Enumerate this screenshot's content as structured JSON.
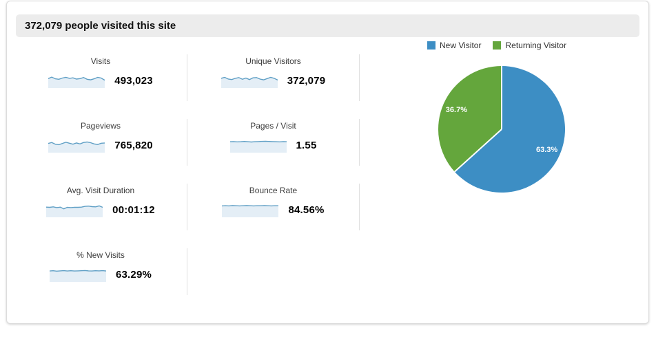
{
  "header": {
    "title": "372,079 people visited this site"
  },
  "metrics": [
    {
      "id": "visits",
      "label": "Visits",
      "value": "493,023",
      "row": 0,
      "col": 0,
      "spark": [
        0.68,
        0.8,
        0.66,
        0.62,
        0.72,
        0.78,
        0.7,
        0.74,
        0.64,
        0.68,
        0.76,
        0.62,
        0.58,
        0.66,
        0.78,
        0.72,
        0.55
      ]
    },
    {
      "id": "unique-visitors",
      "label": "Unique Visitors",
      "value": "372,079",
      "row": 0,
      "col": 1,
      "spark": [
        0.7,
        0.78,
        0.64,
        0.6,
        0.7,
        0.76,
        0.62,
        0.72,
        0.6,
        0.74,
        0.76,
        0.64,
        0.58,
        0.68,
        0.78,
        0.7,
        0.56
      ]
    },
    {
      "id": "pageviews",
      "label": "Pageviews",
      "value": "765,820",
      "row": 1,
      "col": 0,
      "spark": [
        0.66,
        0.74,
        0.6,
        0.56,
        0.66,
        0.76,
        0.68,
        0.6,
        0.7,
        0.62,
        0.74,
        0.78,
        0.72,
        0.62,
        0.58,
        0.68,
        0.7
      ]
    },
    {
      "id": "pages-per-visit",
      "label": "Pages / Visit",
      "value": "1.55",
      "row": 1,
      "col": 1,
      "spark": [
        0.8,
        0.81,
        0.79,
        0.8,
        0.82,
        0.8,
        0.78,
        0.8,
        0.81,
        0.83,
        0.84,
        0.82,
        0.81,
        0.8,
        0.79,
        0.81,
        0.8
      ]
    },
    {
      "id": "avg-visit-duration",
      "label": "Avg. Visit Duration",
      "value": "00:01:12",
      "row": 2,
      "col": 0,
      "spark": [
        0.74,
        0.72,
        0.76,
        0.7,
        0.74,
        0.6,
        0.72,
        0.7,
        0.73,
        0.72,
        0.74,
        0.8,
        0.82,
        0.78,
        0.76,
        0.84,
        0.72
      ]
    },
    {
      "id": "bounce-rate",
      "label": "Bounce Rate",
      "value": "84.56%",
      "row": 2,
      "col": 1,
      "spark": [
        0.84,
        0.85,
        0.84,
        0.86,
        0.85,
        0.84,
        0.85,
        0.86,
        0.85,
        0.84,
        0.85,
        0.85,
        0.86,
        0.85,
        0.84,
        0.85,
        0.85
      ]
    },
    {
      "id": "percent-new-visits",
      "label": "% New Visits",
      "value": "63.29%",
      "row": 3,
      "col": 0,
      "spark": [
        0.8,
        0.82,
        0.79,
        0.81,
        0.83,
        0.8,
        0.82,
        0.8,
        0.81,
        0.82,
        0.84,
        0.81,
        0.8,
        0.82,
        0.81,
        0.83,
        0.8
      ]
    }
  ],
  "chart_data": {
    "type": "pie",
    "labels": [
      "New Visitor",
      "Returning Visitor"
    ],
    "values": [
      63.3,
      36.7
    ],
    "data_labels": [
      "63.3%",
      "36.7%"
    ],
    "colors": [
      "#3d8ec4",
      "#64a63c"
    ],
    "legend_position": "top",
    "start_angle_deg": 0,
    "direction": "clockwise"
  },
  "colors": {
    "spark_line": "#5f9fc5",
    "spark_fill": "#e4eef6",
    "header_bg": "#ececec",
    "divider": "#e0e0e0",
    "pie_blue": "#3d8ec4",
    "pie_green": "#64a63c"
  }
}
